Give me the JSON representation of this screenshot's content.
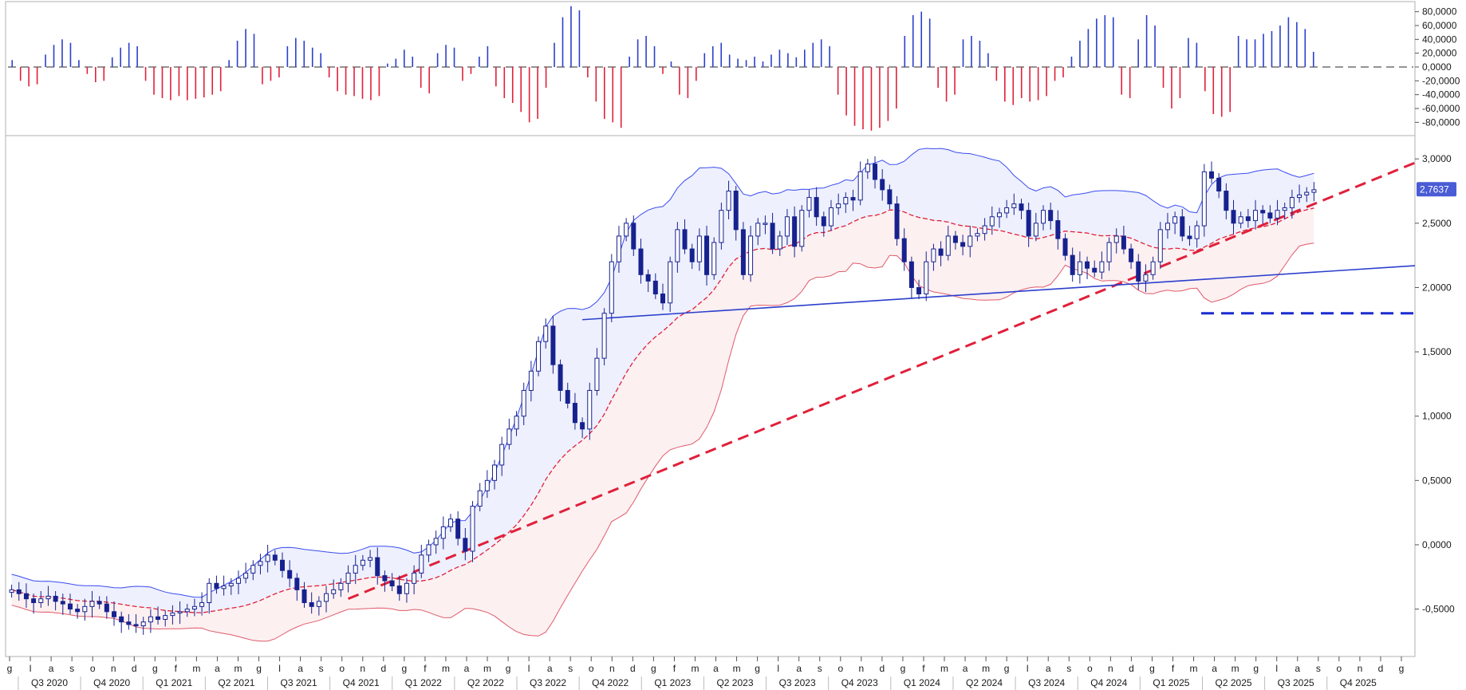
{
  "chart_data": [
    {
      "type": "bar",
      "panel": "oscillator",
      "ylim": [
        -90000,
        90000
      ],
      "ytick_labels": [
        "80,0000",
        "60,0000",
        "40,0000",
        "20,0000",
        "0,0000",
        "-20,0000",
        "-40,0000",
        "-60,0000",
        "-80,0000"
      ],
      "ytick_values": [
        80000,
        60000,
        40000,
        20000,
        0,
        -20000,
        -40000,
        -60000,
        -80000
      ],
      "positive_color": "#2b3fcc",
      "negative_color": "#e0203a",
      "zero_line": "dashed",
      "values": [
        10000,
        -20000,
        -28000,
        -25000,
        18000,
        32000,
        40000,
        35000,
        10000,
        -10000,
        -22000,
        -20000,
        14000,
        28000,
        35000,
        30000,
        -20000,
        -40000,
        -45000,
        -48000,
        -42000,
        -48000,
        -46000,
        -44000,
        -40000,
        -35000,
        10000,
        38000,
        55000,
        48000,
        -25000,
        -20000,
        -15000,
        30000,
        42000,
        38000,
        28000,
        20000,
        -15000,
        -35000,
        -40000,
        -42000,
        -46000,
        -48000,
        -42000,
        5000,
        12000,
        25000,
        15000,
        -30000,
        -38000,
        20000,
        32000,
        28000,
        -20000,
        -10000,
        15000,
        30000,
        -28000,
        -45000,
        -52000,
        -65000,
        -80000,
        -75000,
        -30000,
        35000,
        72000,
        88000,
        82000,
        -15000,
        -50000,
        -75000,
        -80000,
        -88000,
        15000,
        40000,
        45000,
        30000,
        -10000,
        8000,
        -40000,
        -45000,
        -20000,
        20000,
        30000,
        35000,
        18000,
        12000,
        10000,
        15000,
        8000,
        18000,
        25000,
        20000,
        14000,
        25000,
        35000,
        40000,
        30000,
        -40000,
        -70000,
        -85000,
        -90000,
        -92000,
        -88000,
        -78000,
        -60000,
        45000,
        75000,
        80000,
        70000,
        -30000,
        -50000,
        -40000,
        40000,
        45000,
        38000,
        20000,
        -20000,
        -50000,
        -55000,
        -45000,
        -50000,
        -48000,
        -42000,
        -20000,
        -15000,
        15000,
        38000,
        55000,
        70000,
        75000,
        72000,
        -40000,
        -45000,
        40000,
        75000,
        60000,
        -30000,
        -60000,
        -45000,
        42000,
        35000,
        -35000,
        -68000,
        -72000,
        -65000,
        45000,
        40000,
        40000,
        48000,
        52000,
        60000,
        72000,
        65000,
        55000,
        22000
      ]
    },
    {
      "type": "candlestick",
      "panel": "price",
      "ylim": [
        -0.85,
        3.15
      ],
      "ytick_labels": [
        "3,0000",
        "2,5000",
        "2,0000",
        "1,5000",
        "1,0000",
        "0,5000",
        "0,0000",
        "-0,5000"
      ],
      "ytick_values": [
        3.0,
        2.5,
        2.0,
        1.5,
        1.0,
        0.5,
        0.0,
        -0.5
      ],
      "last_price_label": "2,7637",
      "last_price": 2.7637,
      "candle_color": "#17228f",
      "band_upper_color": "#3a4cf0",
      "band_lower_color": "#e05a6a",
      "middle_line_color": "#e0203a",
      "close": [
        -0.35,
        -0.38,
        -0.42,
        -0.45,
        -0.42,
        -0.4,
        -0.44,
        -0.46,
        -0.5,
        -0.52,
        -0.48,
        -0.44,
        -0.46,
        -0.52,
        -0.56,
        -0.6,
        -0.62,
        -0.63,
        -0.6,
        -0.56,
        -0.58,
        -0.55,
        -0.53,
        -0.52,
        -0.5,
        -0.48,
        -0.45,
        -0.3,
        -0.34,
        -0.32,
        -0.3,
        -0.26,
        -0.22,
        -0.16,
        -0.13,
        -0.08,
        -0.12,
        -0.2,
        -0.26,
        -0.35,
        -0.45,
        -0.48,
        -0.44,
        -0.38,
        -0.35,
        -0.3,
        -0.22,
        -0.16,
        -0.12,
        -0.1,
        -0.24,
        -0.28,
        -0.32,
        -0.38,
        -0.3,
        -0.22,
        -0.08,
        0.0,
        0.05,
        0.14,
        0.2,
        0.05,
        -0.05,
        0.3,
        0.42,
        0.5,
        0.62,
        0.78,
        0.9,
        1.0,
        1.2,
        1.35,
        1.58,
        1.7,
        1.4,
        1.2,
        1.1,
        0.95,
        0.9,
        1.2,
        1.45,
        1.8,
        2.2,
        2.4,
        2.5,
        2.3,
        2.1,
        2.05,
        1.95,
        1.88,
        2.2,
        2.45,
        2.3,
        2.2,
        2.4,
        2.1,
        2.35,
        2.6,
        2.75,
        2.45,
        2.1,
        2.4,
        2.5,
        2.5,
        2.3,
        2.4,
        2.55,
        2.32,
        2.6,
        2.7,
        2.55,
        2.48,
        2.62,
        2.65,
        2.7,
        2.68,
        2.9,
        2.96,
        2.84,
        2.76,
        2.65,
        2.38,
        2.2,
        2.0,
        1.95,
        2.2,
        2.3,
        2.25,
        2.4,
        2.35,
        2.32,
        2.4,
        2.42,
        2.48,
        2.55,
        2.58,
        2.62,
        2.65,
        2.6,
        2.4,
        2.5,
        2.6,
        2.52,
        2.38,
        2.25,
        2.1,
        2.2,
        2.15,
        2.12,
        2.2,
        2.35,
        2.4,
        2.3,
        2.2,
        2.05,
        2.1,
        2.2,
        2.45,
        2.5,
        2.55,
        2.4,
        2.38,
        2.48,
        2.9,
        2.85,
        2.75,
        2.6,
        2.5,
        2.55,
        2.52,
        2.6,
        2.58,
        2.54,
        2.6,
        2.62,
        2.7,
        2.72,
        2.74,
        2.76
      ]
    }
  ],
  "x_axis": {
    "month_labels": [
      "g",
      "l",
      "a",
      "s",
      "o",
      "n",
      "d",
      "g",
      "f",
      "m",
      "a",
      "m",
      "g",
      "l",
      "a",
      "s",
      "o",
      "n",
      "d",
      "g",
      "f",
      "m",
      "a",
      "m",
      "g",
      "l",
      "a",
      "s",
      "o",
      "n",
      "d",
      "g",
      "f",
      "m",
      "a",
      "m",
      "g",
      "l",
      "a",
      "s",
      "o",
      "n",
      "d",
      "g",
      "f",
      "m",
      "a",
      "m",
      "g",
      "l",
      "a",
      "s",
      "o",
      "n",
      "d",
      "g",
      "f",
      "m",
      "a",
      "m",
      "g",
      "l",
      "a",
      "s",
      "o",
      "n",
      "d",
      "g"
    ],
    "quarter_labels": [
      "Q3 2020",
      "Q4 2020",
      "Q1 2021",
      "Q2 2021",
      "Q3 2021",
      "Q4 2021",
      "Q1 2022",
      "Q2 2022",
      "Q3 2022",
      "Q4 2022",
      "Q1 2023",
      "Q2 2023",
      "Q3 2023",
      "Q4 2023",
      "Q1 2024",
      "Q2 2024",
      "Q3 2024",
      "Q4 2024",
      "Q1 2025",
      "Q2 2025",
      "Q3 2025",
      "Q4 2025"
    ]
  }
}
